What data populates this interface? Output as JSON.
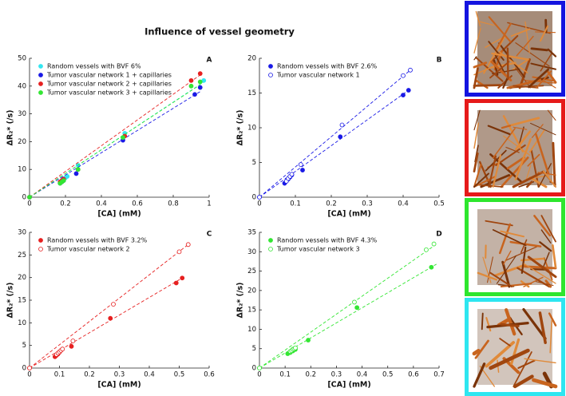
{
  "title": "Influence of vessel geometry",
  "chart_data": [
    {
      "type": "scatter",
      "panel_label": "A",
      "x_label": "[CA] (mM)",
      "y_label": "ΔR₂* (/s)",
      "xlim": [
        0,
        1
      ],
      "xticks": [
        0,
        0.2,
        0.4,
        0.6,
        0.8,
        1
      ],
      "ylim": [
        0,
        50
      ],
      "yticks": [
        0,
        10,
        20,
        30,
        40,
        50
      ],
      "grid": false,
      "legend": "upper left",
      "series": [
        {
          "name": "Random vessels with BVF 6%",
          "color": "#33e6f0",
          "filled": true,
          "x": [
            0,
            0.17,
            0.18,
            0.19,
            0.2,
            0.21,
            0.27,
            0.53,
            0.97
          ],
          "values": [
            0,
            5.5,
            6,
            6.5,
            7,
            7.5,
            11.5,
            23,
            42
          ],
          "fit": {
            "x": [
              0,
              0.97
            ],
            "y": [
              0,
              41.5
            ]
          }
        },
        {
          "name": "Tumor vascular network 1 + capillaries",
          "color": "#1a1ae6",
          "filled": true,
          "x": [
            0,
            0.17,
            0.18,
            0.19,
            0.26,
            0.52,
            0.92,
            0.95
          ],
          "values": [
            0,
            5,
            5.5,
            6,
            8.5,
            20.5,
            37,
            39.5
          ],
          "fit": {
            "x": [
              0,
              0.95
            ],
            "y": [
              0,
              38
            ]
          }
        },
        {
          "name": "Tumor vascular network 2 + capillaries",
          "color": "#e62020",
          "filled": true,
          "x": [
            0,
            0.17,
            0.18,
            0.19,
            0.27,
            0.53,
            0.9,
            0.95
          ],
          "values": [
            0,
            5.5,
            6,
            6.5,
            10,
            22,
            42,
            44.5
          ],
          "fit": {
            "x": [
              0,
              0.95
            ],
            "y": [
              0,
              44
            ]
          }
        },
        {
          "name": "Tumor vascular network 3 + capillaries",
          "color": "#33e633",
          "filled": true,
          "x": [
            0,
            0.17,
            0.18,
            0.19,
            0.27,
            0.52,
            0.9,
            0.95
          ],
          "values": [
            0,
            5,
            5.5,
            6,
            10,
            21.5,
            40,
            41.5
          ],
          "fit": {
            "x": [
              0,
              0.95
            ],
            "y": [
              0,
              40.5
            ]
          }
        }
      ]
    },
    {
      "type": "scatter",
      "panel_label": "B",
      "x_label": "[CA] (mM)",
      "y_label": "ΔR₂* (/s)",
      "xlim": [
        0,
        0.5
      ],
      "xticks": [
        0,
        0.1,
        0.2,
        0.3,
        0.4,
        0.5
      ],
      "ylim": [
        0,
        20
      ],
      "yticks": [
        0,
        5,
        10,
        15,
        20
      ],
      "grid": false,
      "legend": "upper left",
      "series": [
        {
          "name": "Random vessels with BVF 2.6%",
          "color": "#1a1ae6",
          "filled": true,
          "x": [
            0,
            0.07,
            0.075,
            0.08,
            0.085,
            0.09,
            0.12,
            0.225,
            0.4,
            0.415
          ],
          "values": [
            0,
            2,
            2.3,
            2.6,
            2.9,
            3.2,
            3.9,
            8.7,
            14.7,
            15.4
          ],
          "fit": {
            "x": [
              0,
              0.415
            ],
            "y": [
              0,
              15.4
            ]
          }
        },
        {
          "name": "Tumor vascular network 1",
          "color": "#1a1ae6",
          "filled": false,
          "x": [
            0,
            0.075,
            0.08,
            0.085,
            0.09,
            0.115,
            0.23,
            0.4,
            0.42
          ],
          "values": [
            0,
            2.3,
            2.7,
            3,
            3.3,
            4.7,
            10.4,
            17.5,
            18.3
          ],
          "fit": {
            "x": [
              0,
              0.42
            ],
            "y": [
              0,
              18.3
            ]
          }
        }
      ]
    },
    {
      "type": "scatter",
      "panel_label": "C",
      "x_label": "[CA] (mM)",
      "y_label": "ΔR₂* (/s)",
      "xlim": [
        0,
        0.6
      ],
      "xticks": [
        0,
        0.1,
        0.2,
        0.3,
        0.4,
        0.5,
        0.6
      ],
      "ylim": [
        0,
        30
      ],
      "yticks": [
        0,
        5,
        10,
        15,
        20,
        25,
        30
      ],
      "grid": false,
      "legend": "upper left",
      "series": [
        {
          "name": "Random vessels with BVF 3.2%",
          "color": "#e62020",
          "filled": true,
          "x": [
            0,
            0.085,
            0.09,
            0.095,
            0.1,
            0.14,
            0.27,
            0.49,
            0.51
          ],
          "values": [
            0,
            2.5,
            2.8,
            3.1,
            3.5,
            4.8,
            11,
            18.8,
            19.9
          ],
          "fit": {
            "x": [
              0,
              0.51
            ],
            "y": [
              0,
              19.9
            ]
          }
        },
        {
          "name": "Tumor vascular network 2",
          "color": "#e62020",
          "filled": false,
          "x": [
            0,
            0.09,
            0.095,
            0.1,
            0.105,
            0.11,
            0.145,
            0.28,
            0.5,
            0.53
          ],
          "values": [
            0,
            3,
            3.3,
            3.6,
            3.9,
            4.2,
            6,
            14.1,
            25.7,
            27.3
          ],
          "fit": {
            "x": [
              0,
              0.53
            ],
            "y": [
              0,
              27.3
            ]
          }
        }
      ]
    },
    {
      "type": "scatter",
      "panel_label": "D",
      "x_label": "[CA] (mM)",
      "y_label": "ΔR₂* (/s)",
      "xlim": [
        0,
        0.7
      ],
      "xticks": [
        0,
        0.1,
        0.2,
        0.3,
        0.4,
        0.5,
        0.6,
        0.7
      ],
      "ylim": [
        0,
        35
      ],
      "yticks": [
        0,
        5,
        10,
        15,
        20,
        25,
        30,
        35
      ],
      "grid": false,
      "legend": "upper left",
      "series": [
        {
          "name": "Random vessels with BVF 4.3%",
          "color": "#33e633",
          "filled": true,
          "x": [
            0,
            0.11,
            0.12,
            0.13,
            0.14,
            0.19,
            0.38,
            0.67
          ],
          "values": [
            0,
            3.7,
            4,
            4.4,
            4.8,
            7.2,
            15.6,
            26
          ],
          "fit": {
            "x": [
              0,
              0.69
            ],
            "y": [
              0,
              26.8
            ]
          }
        },
        {
          "name": "Tumor vascular network 3",
          "color": "#33e633",
          "filled": false,
          "x": [
            0,
            0.12,
            0.125,
            0.13,
            0.135,
            0.14,
            0.37,
            0.65,
            0.68
          ],
          "values": [
            0,
            4.3,
            4.5,
            4.8,
            5,
            5.2,
            17,
            30.5,
            32
          ],
          "fit": {
            "x": [
              0,
              0.68
            ],
            "y": [
              0,
              31.5
            ]
          }
        }
      ]
    }
  ]
}
